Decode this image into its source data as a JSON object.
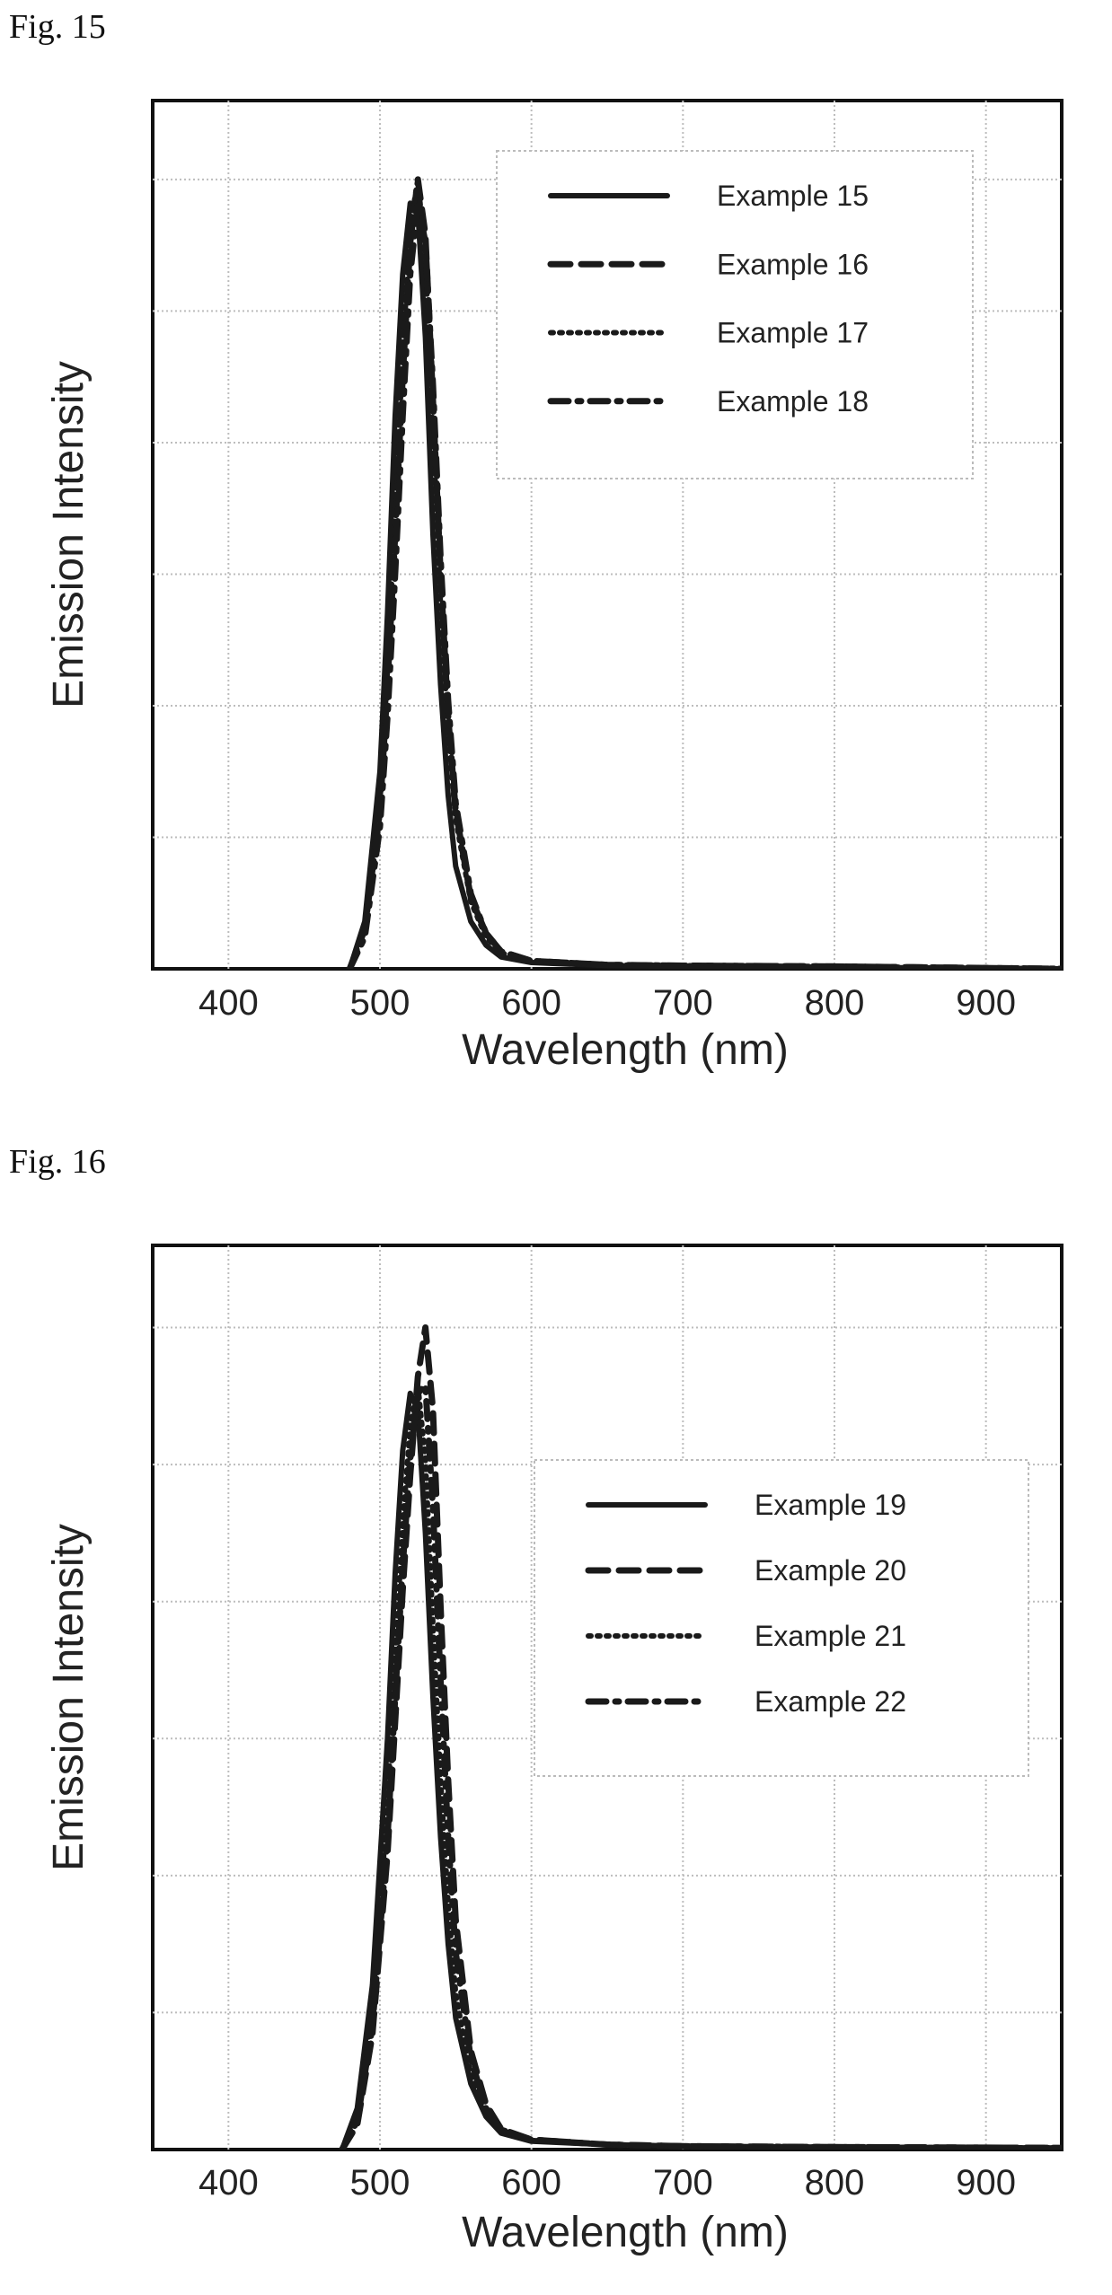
{
  "figures": [
    {
      "label": "Fig. 15"
    },
    {
      "label": "Fig. 16"
    }
  ],
  "chart_data": [
    {
      "type": "line",
      "xlabel": "Wavelength (nm)",
      "ylabel": "Emission Intensity",
      "xlim": [
        350,
        950
      ],
      "ylim": [
        0,
        1.1
      ],
      "xticks": [
        400,
        500,
        600,
        700,
        800,
        900
      ],
      "ytick_count": 6,
      "ytick_labels_shown": false,
      "grid": true,
      "legend_position": "top-right",
      "series": [
        {
          "name": "Example 15",
          "line_style": "solid",
          "x": [
            480,
            490,
            500,
            505,
            510,
            515,
            520,
            525,
            530,
            535,
            540,
            545,
            550,
            560,
            570,
            580,
            600,
            650,
            700,
            800,
            950
          ],
          "y": [
            0.0,
            0.06,
            0.25,
            0.45,
            0.7,
            0.88,
            0.97,
            0.96,
            0.8,
            0.55,
            0.36,
            0.22,
            0.13,
            0.06,
            0.03,
            0.015,
            0.008,
            0.004,
            0.003,
            0.002,
            0.0
          ]
        },
        {
          "name": "Example 16",
          "line_style": "dashed",
          "x": [
            480,
            490,
            500,
            505,
            510,
            515,
            520,
            525,
            530,
            535,
            540,
            545,
            550,
            560,
            570,
            580,
            600,
            650,
            700,
            800,
            950
          ],
          "y": [
            0.0,
            0.05,
            0.2,
            0.36,
            0.55,
            0.75,
            0.92,
            1.0,
            0.93,
            0.72,
            0.5,
            0.32,
            0.2,
            0.09,
            0.045,
            0.022,
            0.01,
            0.005,
            0.004,
            0.003,
            0.0
          ]
        },
        {
          "name": "Example 17",
          "line_style": "dotted",
          "x": [
            480,
            490,
            500,
            505,
            510,
            515,
            520,
            525,
            530,
            535,
            540,
            545,
            550,
            560,
            570,
            580,
            600,
            650,
            700,
            800,
            950
          ],
          "y": [
            0.0,
            0.05,
            0.21,
            0.38,
            0.58,
            0.78,
            0.94,
            1.0,
            0.9,
            0.68,
            0.46,
            0.3,
            0.19,
            0.085,
            0.04,
            0.02,
            0.01,
            0.005,
            0.004,
            0.003,
            0.0
          ]
        },
        {
          "name": "Example 18",
          "line_style": "dash-dot",
          "x": [
            480,
            490,
            500,
            505,
            510,
            515,
            520,
            525,
            530,
            535,
            540,
            545,
            550,
            560,
            570,
            580,
            600,
            650,
            700,
            800,
            950
          ],
          "y": [
            0.0,
            0.04,
            0.18,
            0.32,
            0.5,
            0.7,
            0.88,
            0.97,
            0.92,
            0.74,
            0.52,
            0.34,
            0.21,
            0.095,
            0.045,
            0.022,
            0.01,
            0.005,
            0.004,
            0.003,
            0.0
          ]
        }
      ]
    },
    {
      "type": "line",
      "xlabel": "Wavelength (nm)",
      "ylabel": "Emission Intensity",
      "xlim": [
        350,
        950
      ],
      "ylim": [
        0,
        1.1
      ],
      "xticks": [
        400,
        500,
        600,
        700,
        800,
        900
      ],
      "ytick_count": 6,
      "ytick_labels_shown": false,
      "grid": true,
      "legend_position": "upper-right",
      "series": [
        {
          "name": "Example 19",
          "line_style": "solid",
          "x": [
            475,
            485,
            495,
            505,
            510,
            515,
            520,
            525,
            530,
            535,
            540,
            545,
            550,
            560,
            570,
            580,
            600,
            650,
            700,
            800,
            950
          ],
          "y": [
            0.0,
            0.05,
            0.2,
            0.5,
            0.7,
            0.85,
            0.92,
            0.9,
            0.75,
            0.55,
            0.38,
            0.25,
            0.16,
            0.08,
            0.04,
            0.02,
            0.01,
            0.006,
            0.004,
            0.003,
            0.002
          ]
        },
        {
          "name": "Example 20",
          "line_style": "dashed",
          "x": [
            475,
            485,
            495,
            505,
            510,
            515,
            520,
            525,
            530,
            535,
            540,
            545,
            550,
            560,
            570,
            580,
            600,
            650,
            700,
            800,
            950
          ],
          "y": [
            0.0,
            0.03,
            0.14,
            0.36,
            0.52,
            0.68,
            0.82,
            0.94,
            1.0,
            0.9,
            0.66,
            0.45,
            0.28,
            0.12,
            0.055,
            0.025,
            0.012,
            0.006,
            0.004,
            0.003,
            0.002
          ]
        },
        {
          "name": "Example 21",
          "line_style": "dotted",
          "x": [
            475,
            485,
            495,
            505,
            510,
            515,
            520,
            525,
            530,
            535,
            540,
            545,
            550,
            560,
            570,
            580,
            600,
            650,
            700,
            800,
            950
          ],
          "y": [
            0.0,
            0.04,
            0.17,
            0.42,
            0.6,
            0.76,
            0.88,
            0.93,
            0.84,
            0.64,
            0.45,
            0.3,
            0.19,
            0.09,
            0.045,
            0.022,
            0.011,
            0.006,
            0.004,
            0.003,
            0.002
          ]
        },
        {
          "name": "Example 22",
          "line_style": "dash-dot",
          "x": [
            475,
            485,
            495,
            505,
            510,
            515,
            520,
            525,
            530,
            535,
            540,
            545,
            550,
            560,
            570,
            580,
            600,
            650,
            700,
            800,
            950
          ],
          "y": [
            0.0,
            0.035,
            0.15,
            0.38,
            0.55,
            0.71,
            0.84,
            0.92,
            0.93,
            0.78,
            0.57,
            0.38,
            0.24,
            0.11,
            0.05,
            0.024,
            0.012,
            0.006,
            0.004,
            0.003,
            0.002
          ]
        }
      ]
    }
  ]
}
